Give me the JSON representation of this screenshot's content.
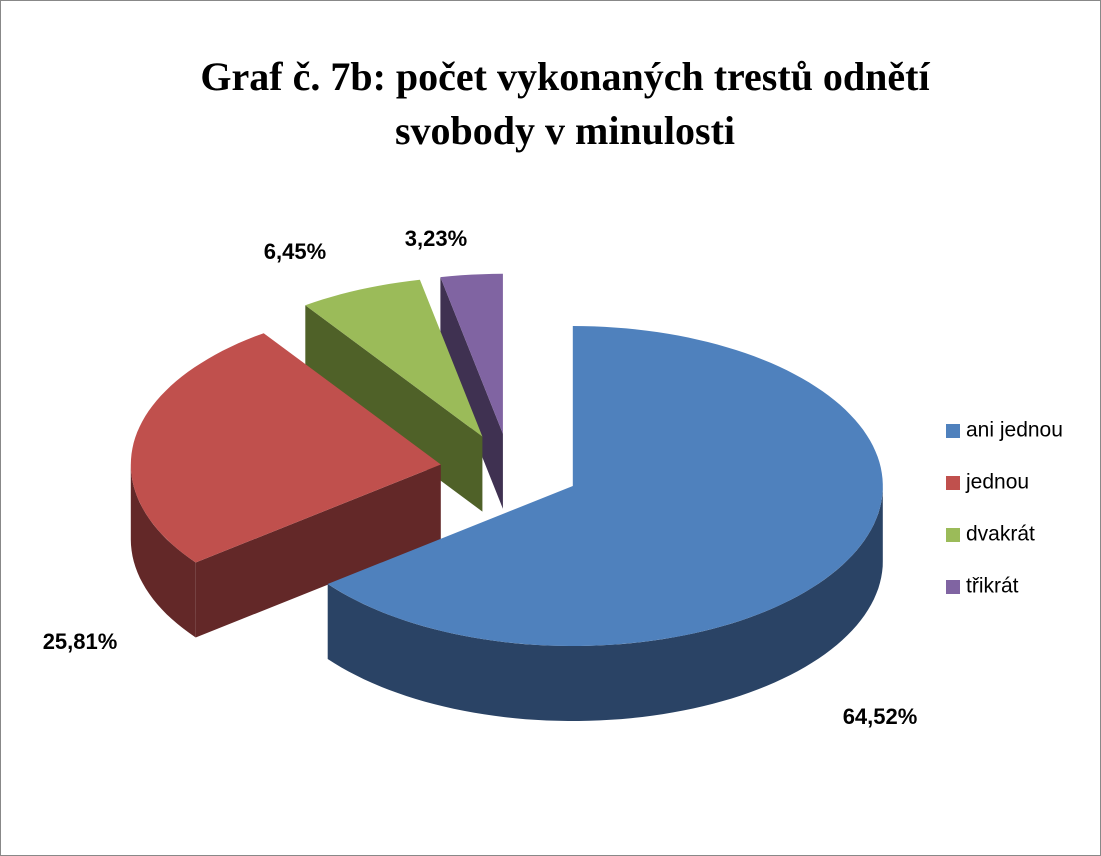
{
  "chart_data": {
    "type": "pie3d",
    "title": "Graf č. 7b: počet vykonaných trestů odnětí svobody v minulosti",
    "categories": [
      "ani jednou",
      "jednou",
      "dvakrát",
      "třikrát"
    ],
    "values": [
      64.52,
      25.81,
      6.45,
      3.23
    ],
    "value_labels": [
      "64,52%",
      "25,81%",
      "6,45%",
      "3,23%"
    ],
    "colors": [
      "#4f81bd",
      "#c0504d",
      "#9bbb59",
      "#8064a2"
    ],
    "side_colors": [
      "#2a4365",
      "#632828",
      "#4f6128",
      "#3f3151"
    ],
    "legend": "right"
  }
}
